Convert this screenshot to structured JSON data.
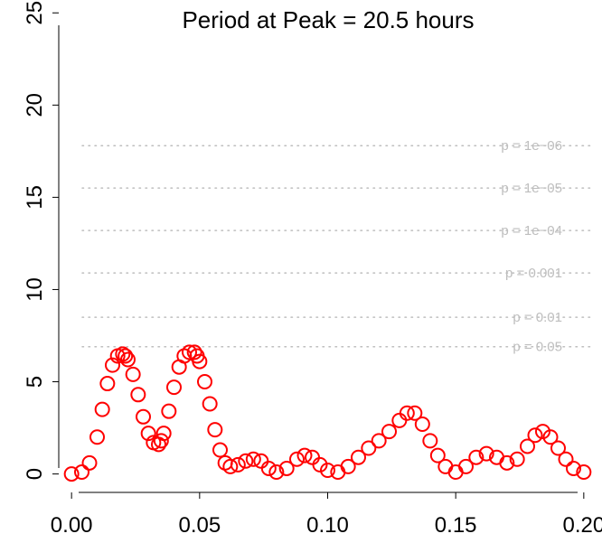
{
  "chart_data": {
    "type": "scatter",
    "title": "Period at Peak = 20.5 hours",
    "xlabel": "",
    "ylabel": "",
    "xlim": [
      -0.005,
      0.205
    ],
    "ylim": [
      -1,
      25.6
    ],
    "x_ticks": [
      {
        "value": 0.0,
        "label": "0.00"
      },
      {
        "value": 0.05,
        "label": "0.05"
      },
      {
        "value": 0.1,
        "label": "0.10"
      },
      {
        "value": 0.15,
        "label": "0.15"
      },
      {
        "value": 0.2,
        "label": "0.20"
      }
    ],
    "y_ticks": [
      {
        "value": 0,
        "label": "0"
      },
      {
        "value": 5,
        "label": "5"
      },
      {
        "value": 10,
        "label": "10"
      },
      {
        "value": 15,
        "label": "15"
      },
      {
        "value": 20,
        "label": "20"
      },
      {
        "value": 25,
        "label": "25"
      }
    ],
    "significance_lines": [
      {
        "value": 6.9,
        "label": "p = 0.05"
      },
      {
        "value": 8.5,
        "label": "p = 0.01"
      },
      {
        "value": 10.9,
        "label": "p = 0.001"
      },
      {
        "value": 13.2,
        "label": "p = 1e−04"
      },
      {
        "value": 15.5,
        "label": "p = 1e−05"
      },
      {
        "value": 17.8,
        "label": "p = 1e−06"
      }
    ],
    "series": [
      {
        "x": [
          0.0,
          0.004,
          0.007,
          0.01,
          0.012,
          0.014,
          0.016,
          0.018,
          0.02,
          0.021,
          0.022,
          0.024,
          0.026,
          0.028,
          0.03,
          0.032,
          0.034,
          0.035,
          0.036,
          0.038,
          0.04,
          0.042,
          0.044,
          0.046,
          0.048,
          0.049,
          0.05,
          0.052,
          0.054,
          0.056,
          0.058,
          0.06,
          0.062,
          0.065,
          0.068,
          0.071,
          0.074,
          0.077,
          0.08,
          0.084,
          0.088,
          0.091,
          0.094,
          0.097,
          0.1,
          0.104,
          0.108,
          0.112,
          0.116,
          0.12,
          0.124,
          0.128,
          0.131,
          0.134,
          0.137,
          0.14,
          0.143,
          0.146,
          0.15,
          0.154,
          0.158,
          0.162,
          0.166,
          0.17,
          0.174,
          0.178,
          0.181,
          0.184,
          0.187,
          0.19,
          0.193,
          0.196,
          0.2
        ],
        "y": [
          0.0,
          0.1,
          0.6,
          2.0,
          3.5,
          4.9,
          5.9,
          6.4,
          6.5,
          6.4,
          6.2,
          5.4,
          4.3,
          3.1,
          2.2,
          1.7,
          1.6,
          1.8,
          2.2,
          3.4,
          4.7,
          5.8,
          6.4,
          6.6,
          6.6,
          6.4,
          6.1,
          5.0,
          3.8,
          2.4,
          1.3,
          0.6,
          0.4,
          0.5,
          0.7,
          0.8,
          0.7,
          0.3,
          0.1,
          0.3,
          0.8,
          1.0,
          0.9,
          0.5,
          0.2,
          0.1,
          0.4,
          0.9,
          1.4,
          1.8,
          2.3,
          2.9,
          3.3,
          3.3,
          2.7,
          1.8,
          1.0,
          0.4,
          0.1,
          0.4,
          0.9,
          1.1,
          0.9,
          0.6,
          0.8,
          1.5,
          2.1,
          2.3,
          2.0,
          1.4,
          0.8,
          0.3,
          0.1
        ],
        "color": "#ff0000"
      }
    ],
    "colors": {
      "points": "#ff0000",
      "significance": "#bebebe",
      "axis": "#000000"
    }
  }
}
